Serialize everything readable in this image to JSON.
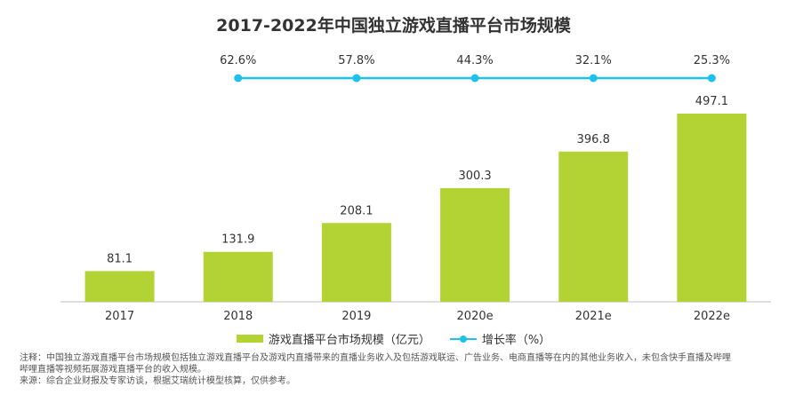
{
  "chart_data": {
    "type": "bar",
    "title": "2017-2022年中国独立游戏直播平台市场规模",
    "categories": [
      "2017",
      "2018",
      "2019",
      "2020e",
      "2021e",
      "2022e"
    ],
    "series": [
      {
        "name": "游戏直播平台市场规模（亿元）",
        "type": "bar",
        "values": [
          81.1,
          131.9,
          208.1,
          300.3,
          396.8,
          497.1
        ]
      },
      {
        "name": "增长率（%）",
        "type": "line",
        "x": [
          "2018",
          "2019",
          "2020e",
          "2021e",
          "2022e"
        ],
        "values": [
          62.6,
          57.8,
          44.3,
          32.1,
          25.3
        ],
        "value_labels": [
          "62.6%",
          "57.8%",
          "44.3%",
          "32.1%",
          "25.3%"
        ]
      }
    ],
    "colors": {
      "bar": "#b3d334",
      "line": "#1ec1ec"
    },
    "legend_position": "bottom"
  },
  "notes": {
    "line1": "注释：中国独立游戏直播平台市场规模包括独立游戏直播平台及游戏内直播带来的直播业务收入及包括游戏联运、广告业务、电商直播等在内的其他业务收入，未包含快手直播及哔哩",
    "line2": "哔哩直播等视频拓展游戏直播平台的收入规模。",
    "line3": "来源：综合企业财报及专家访谈，根据艾瑞统计模型核算，仅供参考。"
  }
}
